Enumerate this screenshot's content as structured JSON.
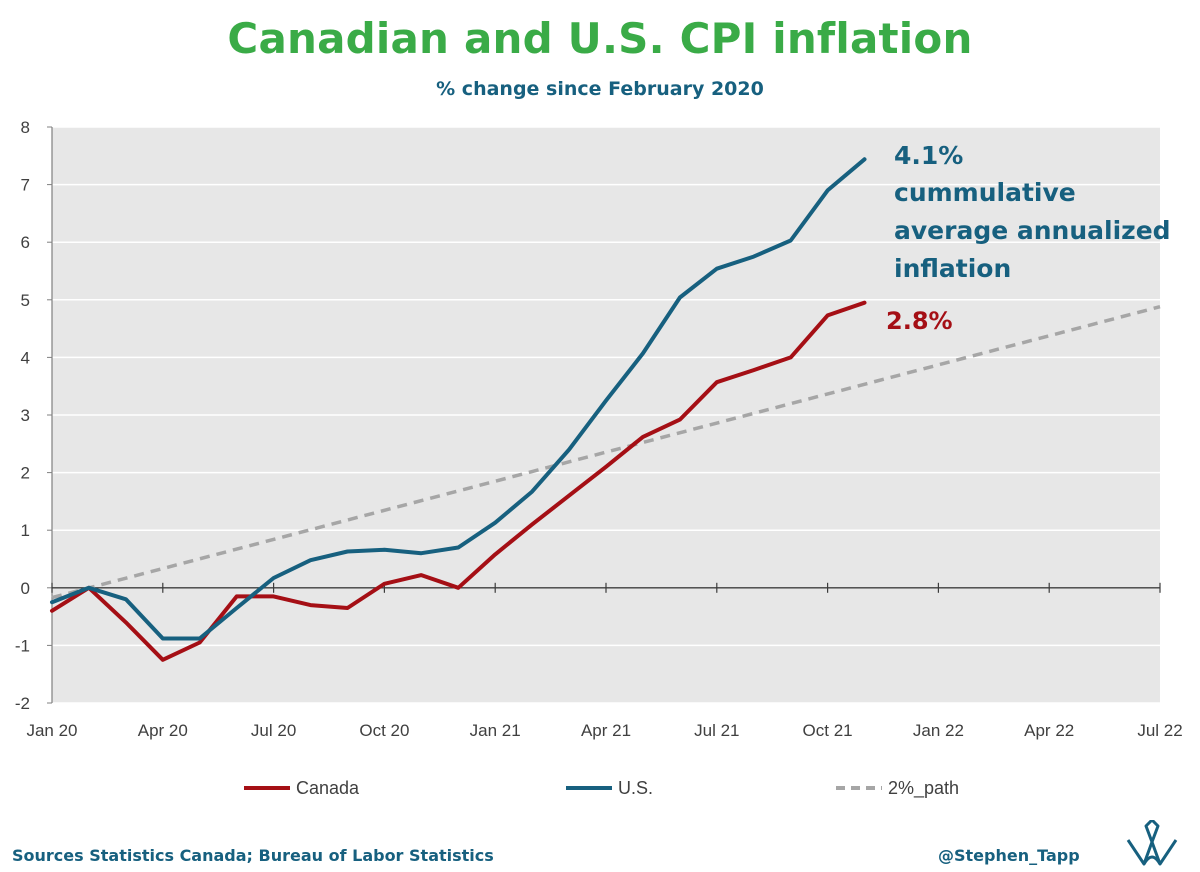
{
  "title": "Canadian and U.S. CPI inflation",
  "subtitle": "% change since February 2020",
  "source": "Sources Statistics Canada; Bureau of Labor Statistics",
  "handle": "@Stephen_Tapp",
  "colors": {
    "title": "#3aab47",
    "canada": "#a50f15",
    "us": "#17607f",
    "path": "#a6a6a6",
    "plot_bg": "#e7e7e7",
    "grid": "#ffffff"
  },
  "chart_data": {
    "type": "line",
    "title": "Canadian and U.S. CPI inflation",
    "subtitle": "% change since February 2020",
    "xlabel": "",
    "ylabel": "",
    "x_start": "Jan 2020",
    "x_end": "Jul 2022",
    "xlim": [
      0,
      30
    ],
    "ylim": [
      -2,
      8
    ],
    "yticks": [
      -2,
      -1,
      0,
      1,
      2,
      3,
      4,
      5,
      6,
      7,
      8
    ],
    "xticks": [
      {
        "label": "Jan 20",
        "x": 0
      },
      {
        "label": "Apr 20",
        "x": 3
      },
      {
        "label": "Jul 20",
        "x": 6
      },
      {
        "label": "Oct 20",
        "x": 9
      },
      {
        "label": "Jan 21",
        "x": 12
      },
      {
        "label": "Apr 21",
        "x": 15
      },
      {
        "label": "Jul 21",
        "x": 18
      },
      {
        "label": "Oct 21",
        "x": 21
      },
      {
        "label": "Jan 22",
        "x": 24
      },
      {
        "label": "Apr 22",
        "x": 27
      },
      {
        "label": "Jul 22",
        "x": 30
      }
    ],
    "grid": true,
    "legend": "bottom",
    "series": [
      {
        "name": "Canada",
        "style": "solid",
        "x": [
          0,
          1,
          2,
          3,
          4,
          5,
          6,
          7,
          8,
          9,
          10,
          11,
          12,
          13,
          14,
          15,
          16,
          17,
          18,
          19,
          20,
          21,
          22
        ],
        "values": [
          -0.4,
          0.0,
          -0.6,
          -1.25,
          -0.95,
          -0.15,
          -0.15,
          -0.3,
          -0.35,
          0.07,
          0.22,
          0.0,
          0.58,
          1.1,
          1.6,
          2.1,
          2.62,
          2.92,
          3.57,
          3.78,
          4.0,
          4.73,
          4.95
        ]
      },
      {
        "name": "U.S.",
        "style": "solid",
        "x": [
          0,
          1,
          2,
          3,
          4,
          5,
          6,
          7,
          8,
          9,
          10,
          11,
          12,
          13,
          14,
          15,
          16,
          17,
          18,
          19,
          20,
          21,
          22
        ],
        "values": [
          -0.25,
          0.0,
          -0.2,
          -0.88,
          -0.88,
          -0.35,
          0.17,
          0.48,
          0.63,
          0.66,
          0.6,
          0.7,
          1.13,
          1.67,
          2.4,
          3.25,
          4.07,
          5.04,
          5.54,
          5.75,
          6.03,
          6.9,
          7.44
        ]
      },
      {
        "name": "2%_path",
        "style": "dashed",
        "x": [
          0,
          30
        ],
        "values": [
          -0.17,
          4.88
        ]
      }
    ],
    "annotations": [
      {
        "series": "U.S.",
        "lines": [
          "4.1%",
          "cummulative",
          "average annualized",
          "inflation"
        ]
      },
      {
        "series": "Canada",
        "lines": [
          "2.8%"
        ]
      }
    ]
  }
}
